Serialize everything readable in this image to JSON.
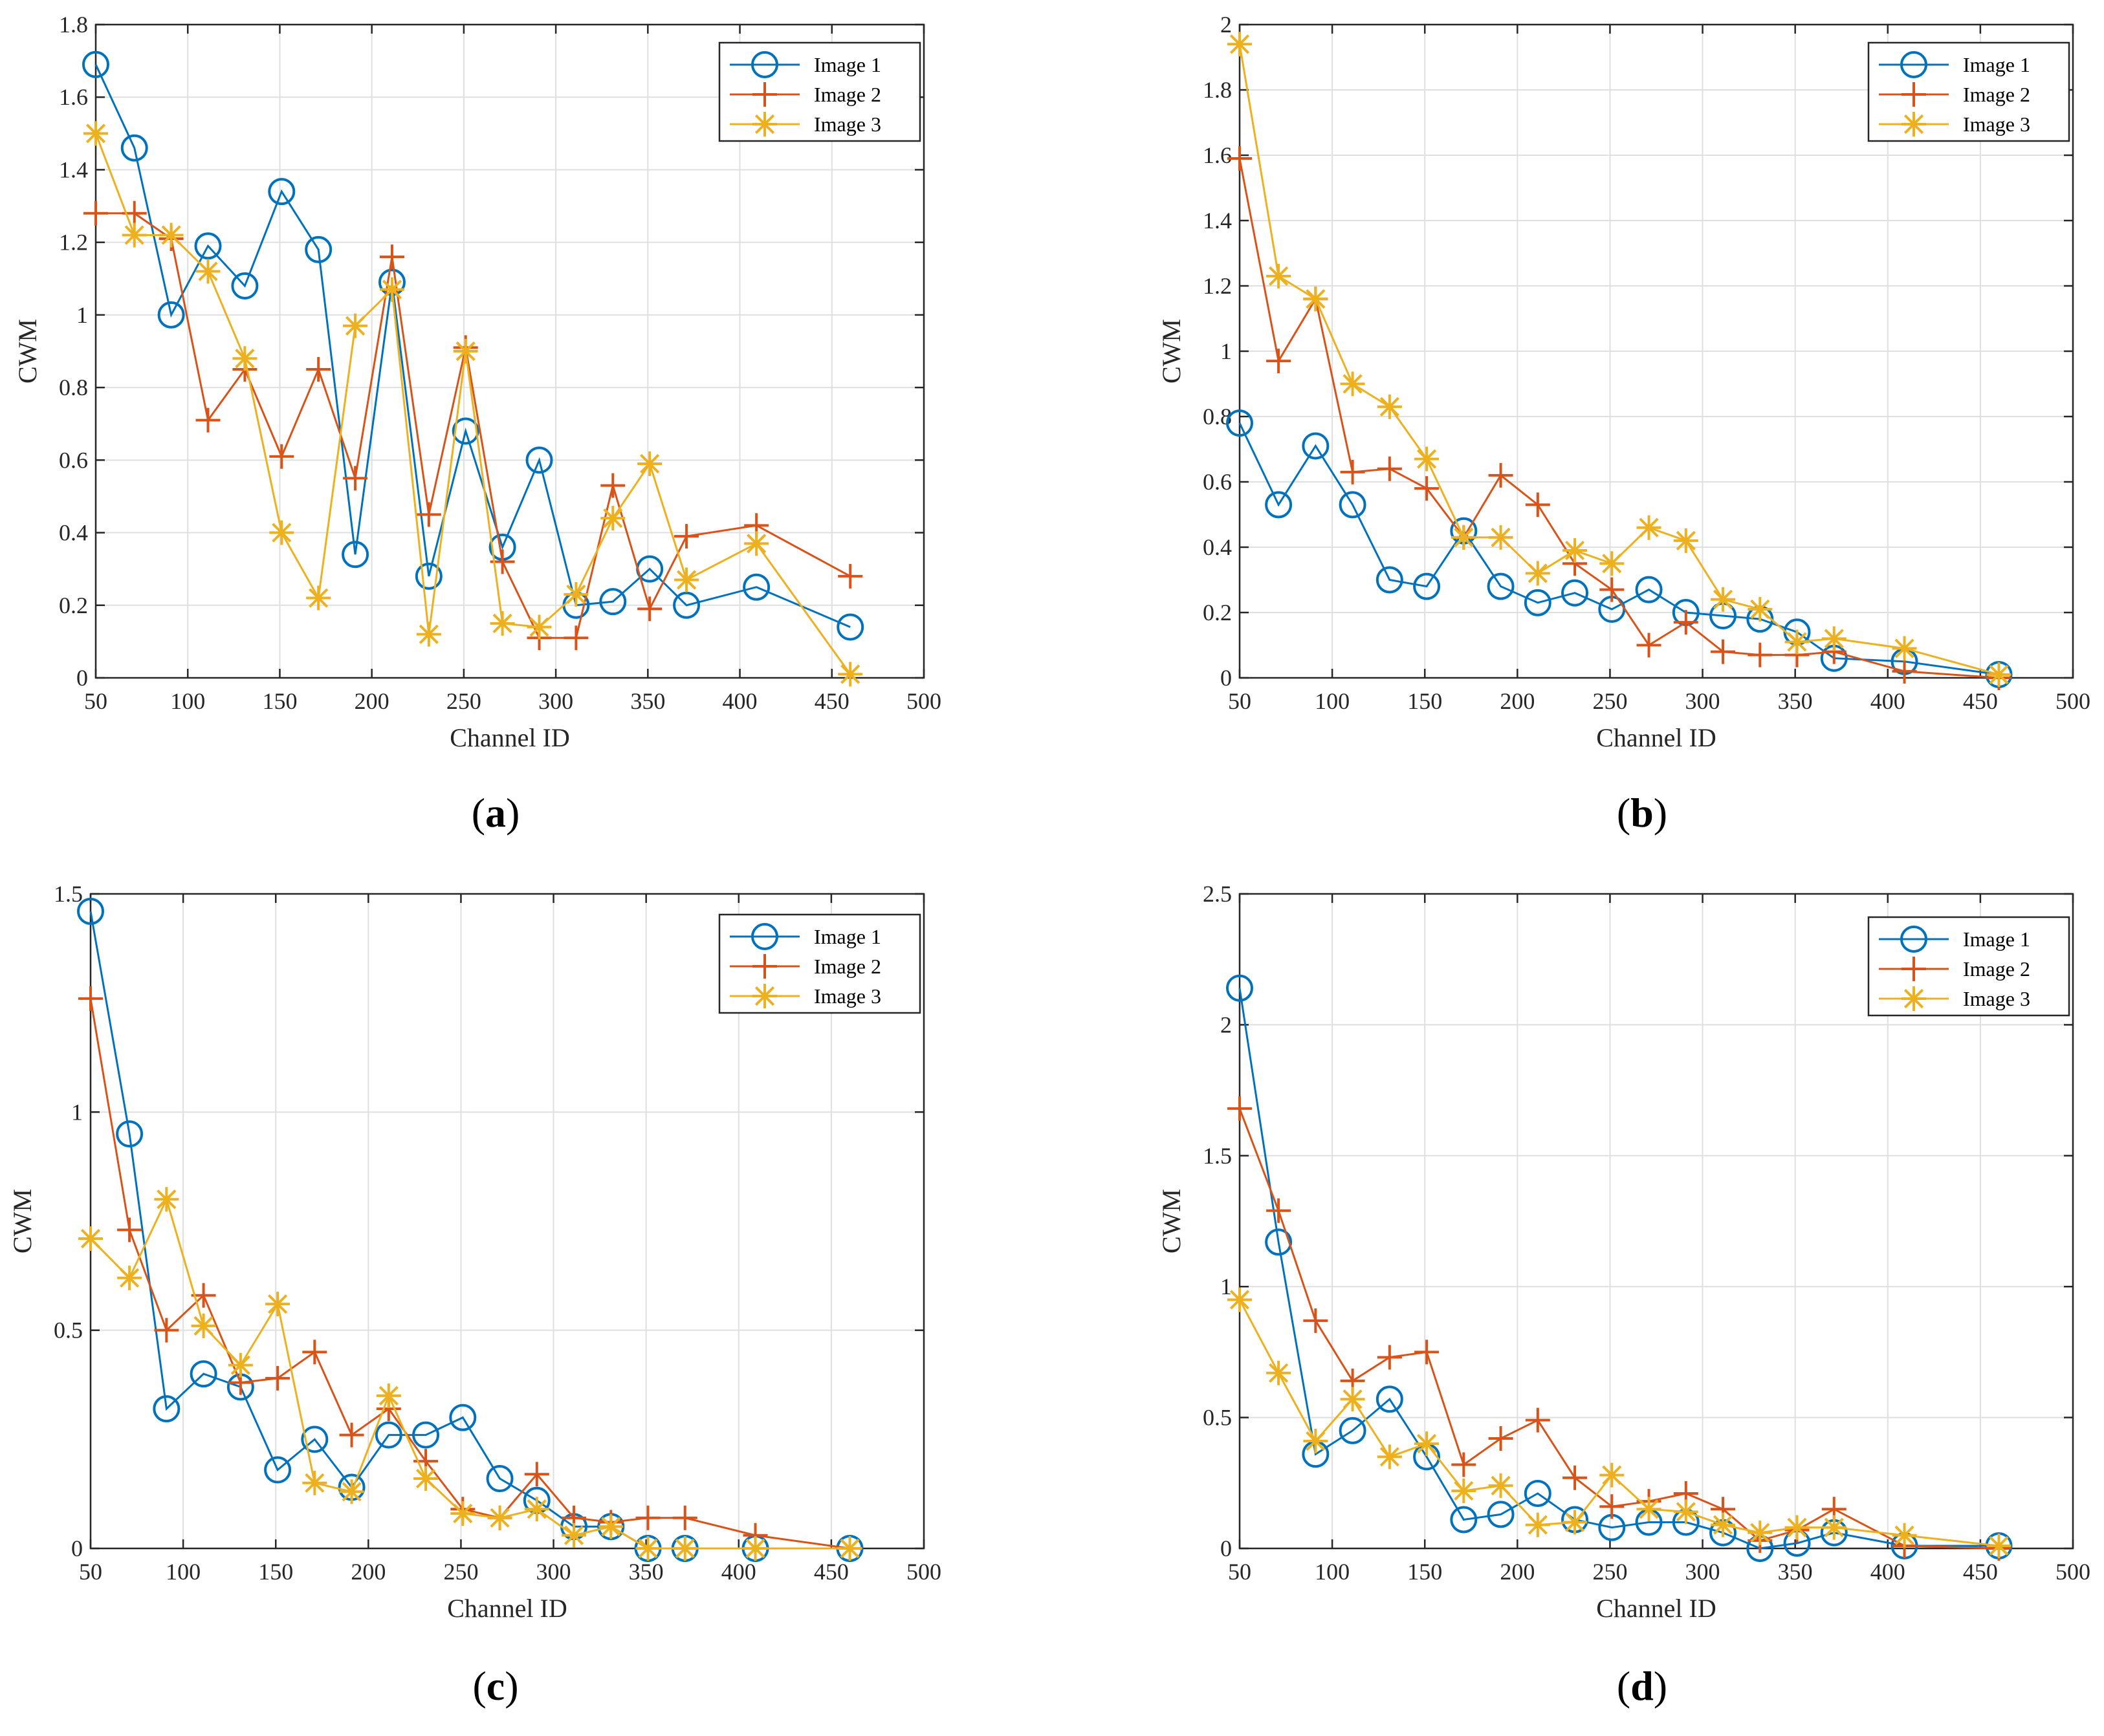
{
  "colors": {
    "series": [
      "#0072BD",
      "#D95319",
      "#EDB120"
    ],
    "grid": "#dfdfdf",
    "axis": "#262626"
  },
  "chart_data": [
    {
      "panel": "a",
      "panel_label": "a",
      "type": "line",
      "xlabel": "Channel ID",
      "ylabel": "CWM",
      "xlim": [
        50,
        500
      ],
      "ylim": [
        0,
        1.8
      ],
      "xticks": [
        50,
        100,
        150,
        200,
        250,
        300,
        350,
        400,
        450,
        500
      ],
      "xtick_labels": [
        "50",
        "100",
        "150",
        "200",
        "250",
        "300",
        "350",
        "400",
        "450",
        "500"
      ],
      "yticks": [
        0,
        0.2,
        0.4,
        0.6,
        0.8,
        1.0,
        1.2,
        1.4,
        1.6,
        1.8
      ],
      "ytick_labels": [
        "0",
        "0.2",
        "0.4",
        "0.6",
        "0.8",
        "1",
        "1.2",
        "1.4",
        "1.6",
        "1.8"
      ],
      "grid": true,
      "legend_position": "top-right",
      "x": [
        50,
        71,
        91,
        111,
        131,
        151,
        171,
        191,
        211,
        231,
        251,
        271,
        291,
        311,
        331,
        351,
        371,
        409,
        460
      ],
      "series": [
        {
          "name": "Image 1",
          "marker": "circle",
          "values": [
            1.69,
            1.46,
            1.0,
            1.19,
            1.08,
            1.34,
            1.18,
            0.34,
            1.09,
            0.28,
            0.68,
            0.36,
            0.6,
            0.2,
            0.21,
            0.3,
            0.2,
            0.25,
            0.14
          ]
        },
        {
          "name": "Image 2",
          "marker": "plus",
          "values": [
            1.28,
            1.28,
            1.21,
            0.71,
            0.85,
            0.61,
            0.85,
            0.55,
            1.16,
            0.45,
            0.91,
            0.32,
            0.11,
            0.11,
            0.53,
            0.19,
            0.39,
            0.42,
            0.28
          ]
        },
        {
          "name": "Image 3",
          "marker": "asterisk",
          "values": [
            1.5,
            1.22,
            1.22,
            1.12,
            0.88,
            0.4,
            0.22,
            0.97,
            1.07,
            0.12,
            0.9,
            0.15,
            0.14,
            0.23,
            0.44,
            0.59,
            0.27,
            0.37,
            0.01
          ]
        }
      ]
    },
    {
      "panel": "b",
      "panel_label": "b",
      "type": "line",
      "xlabel": "Channel ID",
      "ylabel": "CWM",
      "xlim": [
        50,
        500
      ],
      "ylim": [
        0,
        2.0
      ],
      "xticks": [
        50,
        100,
        150,
        200,
        250,
        300,
        350,
        400,
        450,
        500
      ],
      "xtick_labels": [
        "50",
        "100",
        "150",
        "200",
        "250",
        "300",
        "350",
        "400",
        "450",
        "500"
      ],
      "yticks": [
        0,
        0.2,
        0.4,
        0.6,
        0.8,
        1.0,
        1.2,
        1.4,
        1.6,
        1.8,
        2.0
      ],
      "ytick_labels": [
        "0",
        "0.2",
        "0.4",
        "0.6",
        "0.8",
        "1",
        "1.2",
        "1.4",
        "1.6",
        "1.8",
        "2"
      ],
      "grid": true,
      "legend_position": "top-right",
      "x": [
        50,
        71,
        91,
        111,
        131,
        151,
        171,
        191,
        211,
        231,
        251,
        271,
        291,
        311,
        331,
        351,
        371,
        409,
        460
      ],
      "series": [
        {
          "name": "Image 1",
          "marker": "circle",
          "values": [
            0.78,
            0.53,
            0.71,
            0.53,
            0.3,
            0.28,
            0.45,
            0.28,
            0.23,
            0.26,
            0.21,
            0.27,
            0.2,
            0.19,
            0.18,
            0.14,
            0.06,
            0.05,
            0.01
          ]
        },
        {
          "name": "Image 2",
          "marker": "plus",
          "values": [
            1.59,
            0.97,
            1.16,
            0.63,
            0.64,
            0.58,
            0.43,
            0.62,
            0.53,
            0.35,
            0.27,
            0.1,
            0.17,
            0.08,
            0.07,
            0.07,
            0.08,
            0.02,
            0.0
          ]
        },
        {
          "name": "Image 3",
          "marker": "asterisk",
          "values": [
            1.94,
            1.23,
            1.16,
            0.9,
            0.83,
            0.67,
            0.43,
            0.43,
            0.32,
            0.39,
            0.35,
            0.46,
            0.42,
            0.24,
            0.21,
            0.11,
            0.12,
            0.09,
            0.01
          ]
        }
      ]
    },
    {
      "panel": "c",
      "panel_label": "c",
      "type": "line",
      "xlabel": "Channel ID",
      "ylabel": "CWM",
      "xlim": [
        50,
        500
      ],
      "ylim": [
        0,
        1.5
      ],
      "xticks": [
        50,
        100,
        150,
        200,
        250,
        300,
        350,
        400,
        450,
        500
      ],
      "xtick_labels": [
        "50",
        "100",
        "150",
        "200",
        "250",
        "300",
        "350",
        "400",
        "450",
        "500"
      ],
      "yticks": [
        0,
        0.5,
        1.0,
        1.5
      ],
      "ytick_labels": [
        "0",
        "0.5",
        "1",
        "1.5"
      ],
      "grid": true,
      "legend_position": "top-right",
      "x": [
        50,
        71,
        91,
        111,
        131,
        151,
        171,
        191,
        211,
        231,
        251,
        271,
        291,
        311,
        331,
        351,
        371,
        409,
        460
      ],
      "series": [
        {
          "name": "Image 1",
          "marker": "circle",
          "values": [
            1.46,
            0.95,
            0.32,
            0.4,
            0.37,
            0.18,
            0.25,
            0.14,
            0.26,
            0.26,
            0.3,
            0.16,
            0.11,
            0.05,
            0.05,
            0.0,
            0.0,
            0.0,
            0.0
          ]
        },
        {
          "name": "Image 2",
          "marker": "plus",
          "values": [
            1.26,
            0.73,
            0.5,
            0.58,
            0.38,
            0.39,
            0.45,
            0.26,
            0.32,
            0.2,
            0.09,
            0.07,
            0.17,
            0.07,
            0.06,
            0.07,
            0.07,
            0.03,
            0.0
          ]
        },
        {
          "name": "Image 3",
          "marker": "asterisk",
          "values": [
            0.71,
            0.62,
            0.8,
            0.51,
            0.42,
            0.56,
            0.15,
            0.13,
            0.35,
            0.16,
            0.08,
            0.07,
            0.09,
            0.03,
            0.05,
            0.0,
            0.0,
            0.0,
            0.0
          ]
        }
      ]
    },
    {
      "panel": "d",
      "panel_label": "d",
      "type": "line",
      "xlabel": "Channel ID",
      "ylabel": "CWM",
      "xlim": [
        50,
        500
      ],
      "ylim": [
        0,
        2.5
      ],
      "xticks": [
        50,
        100,
        150,
        200,
        250,
        300,
        350,
        400,
        450,
        500
      ],
      "xtick_labels": [
        "50",
        "100",
        "150",
        "200",
        "250",
        "300",
        "350",
        "400",
        "450",
        "500"
      ],
      "yticks": [
        0,
        0.5,
        1.0,
        1.5,
        2.0,
        2.5
      ],
      "ytick_labels": [
        "0",
        "0.5",
        "1",
        "1.5",
        "2",
        "2.5"
      ],
      "grid": true,
      "legend_position": "top-right",
      "x": [
        50,
        71,
        91,
        111,
        131,
        151,
        171,
        191,
        211,
        231,
        251,
        271,
        291,
        311,
        331,
        351,
        371,
        409,
        460
      ],
      "series": [
        {
          "name": "Image 1",
          "marker": "circle",
          "values": [
            2.14,
            1.17,
            0.36,
            0.45,
            0.57,
            0.35,
            0.11,
            0.13,
            0.21,
            0.11,
            0.08,
            0.1,
            0.1,
            0.06,
            0.0,
            0.02,
            0.06,
            0.01,
            0.01
          ]
        },
        {
          "name": "Image 2",
          "marker": "plus",
          "values": [
            1.68,
            1.29,
            0.87,
            0.64,
            0.73,
            0.75,
            0.32,
            0.42,
            0.49,
            0.27,
            0.16,
            0.18,
            0.21,
            0.15,
            0.03,
            0.07,
            0.15,
            0.01,
            0.0
          ]
        },
        {
          "name": "Image 3",
          "marker": "asterisk",
          "values": [
            0.95,
            0.67,
            0.41,
            0.57,
            0.35,
            0.4,
            0.22,
            0.24,
            0.09,
            0.1,
            0.28,
            0.15,
            0.14,
            0.09,
            0.06,
            0.08,
            0.08,
            0.05,
            0.01
          ]
        }
      ]
    }
  ]
}
